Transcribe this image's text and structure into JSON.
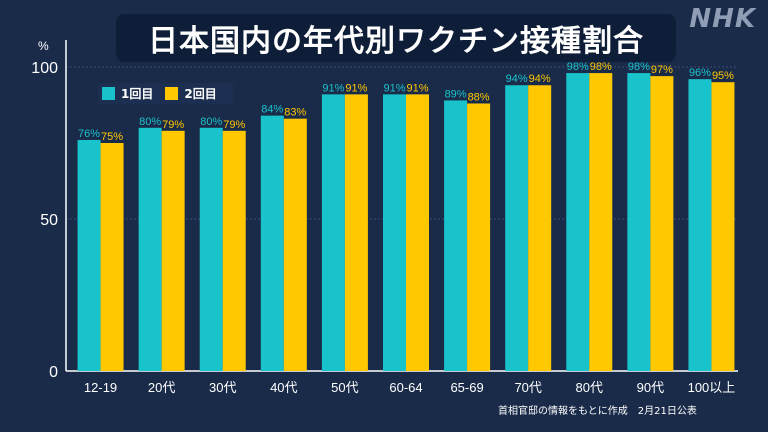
{
  "title": "日本国内の年代別ワクチン接種割合",
  "logo": "NHK",
  "source": "首相官邸の情報をもとに作成　2月21日公表",
  "colors": {
    "series1": "#19c3cb",
    "series2": "#ffc800",
    "background": "#1a2b4a",
    "label1": "#19c3cb",
    "label2": "#ffc800"
  },
  "chart_data": {
    "type": "bar",
    "title": "日本国内の年代別ワクチン接種割合",
    "ylabel": "%",
    "ylim": [
      0,
      100
    ],
    "yticks": [
      0,
      50,
      100
    ],
    "grid": true,
    "legend": "top-left",
    "categories": [
      "12-19",
      "20代",
      "30代",
      "40代",
      "50代",
      "60-64",
      "65-69",
      "70代",
      "80代",
      "90代",
      "100以上"
    ],
    "series": [
      {
        "name": "1回目",
        "values": [
          76,
          80,
          80,
          84,
          91,
          91,
          89,
          94,
          98,
          98,
          96
        ]
      },
      {
        "name": "2回目",
        "values": [
          75,
          79,
          79,
          83,
          91,
          91,
          88,
          94,
          98,
          97,
          95
        ]
      }
    ]
  }
}
